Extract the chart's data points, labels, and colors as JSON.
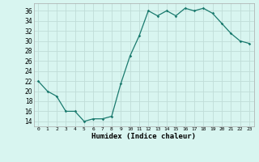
{
  "x": [
    0,
    1,
    2,
    3,
    4,
    5,
    6,
    7,
    8,
    9,
    10,
    11,
    12,
    13,
    14,
    15,
    16,
    17,
    18,
    19,
    20,
    21,
    22,
    23
  ],
  "y": [
    22,
    20,
    19,
    16,
    16,
    14,
    14.5,
    14.5,
    15,
    21.5,
    27,
    31,
    36,
    35,
    36,
    35,
    36.5,
    36,
    36.5,
    35.5,
    33.5,
    31.5,
    30,
    29.5
  ],
  "line_color": "#1a7a6e",
  "marker": "D",
  "marker_size": 1.8,
  "bg_color": "#d8f5f0",
  "grid_color": "#c0ddd8",
  "xlabel": "Humidex (Indice chaleur)",
  "xlabel_fontsize": 6.5,
  "ylabel_ticks": [
    14,
    16,
    18,
    20,
    22,
    24,
    26,
    28,
    30,
    32,
    34,
    36
  ],
  "ylim": [
    13,
    37.5
  ],
  "xlim": [
    -0.5,
    23.5
  ],
  "xtick_fontsize": 4.5,
  "ytick_fontsize": 5.5,
  "linewidth": 0.9
}
